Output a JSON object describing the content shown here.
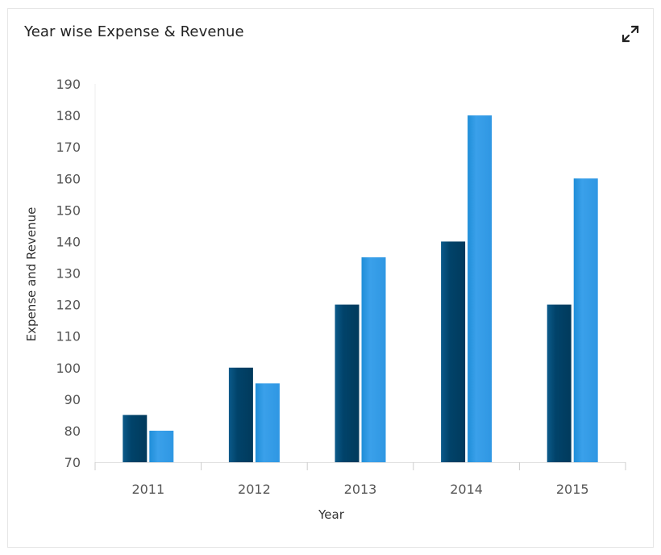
{
  "card": {
    "title": "Year wise Expense & Revenue",
    "expand_icon": "expand-icon"
  },
  "chart_data": {
    "type": "bar",
    "title": "Year wise Expense & Revenue",
    "xlabel": "Year",
    "ylabel": "Expense and Revenue",
    "categories": [
      "2011",
      "2012",
      "2013",
      "2014",
      "2015"
    ],
    "ylim": [
      70,
      190
    ],
    "yticks": [
      70,
      80,
      90,
      100,
      110,
      120,
      130,
      140,
      150,
      160,
      170,
      180,
      190
    ],
    "grid": false,
    "legend": "none",
    "series": [
      {
        "values": [
          85,
          100,
          120,
          140,
          120
        ],
        "color": "#01436a"
      },
      {
        "values": [
          80,
          95,
          135,
          180,
          160
        ],
        "color": "#3aa0ea"
      }
    ]
  }
}
